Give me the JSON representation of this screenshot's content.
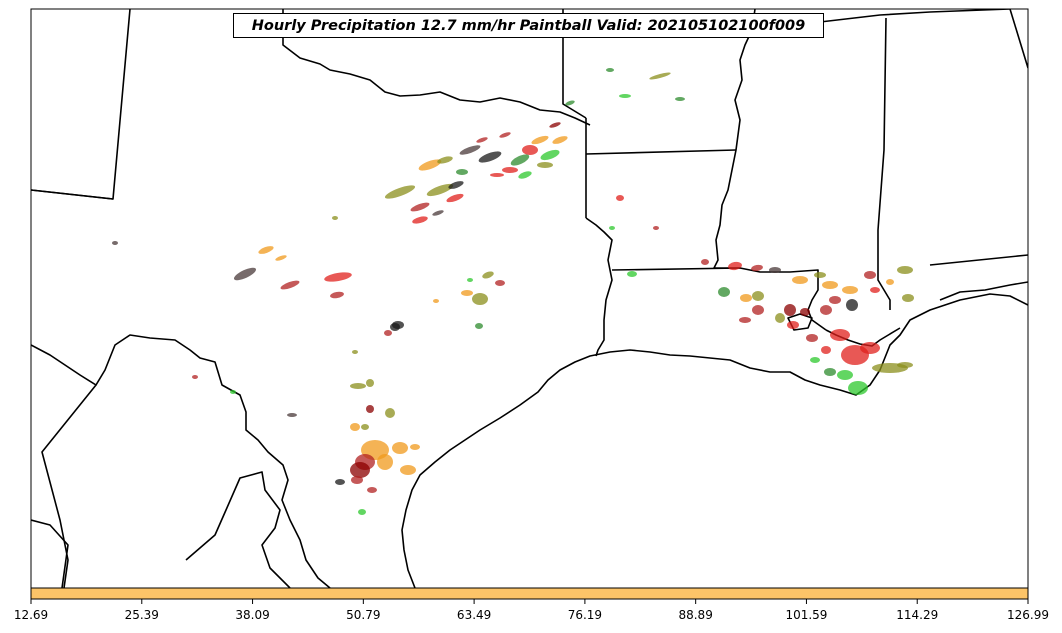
{
  "map": {
    "title": "Hourly Precipitation 12.7 mm/hr Paintball Valid: 202105102100f009",
    "colorbar": {
      "fill_color": "#fcc468",
      "tick_labels": [
        "12.69",
        "25.39",
        "38.09",
        "50.79",
        "63.49",
        "76.19",
        "88.89",
        "101.59",
        "114.29",
        "126.99"
      ]
    },
    "member_colors": [
      "#e0201c",
      "#f09a1c",
      "#8b8f1c",
      "#b22222",
      "#2e8b2e",
      "#2ec82e",
      "#8b0000",
      "#4a3a3a",
      "#1a1a1a",
      "#c86432"
    ]
  }
}
